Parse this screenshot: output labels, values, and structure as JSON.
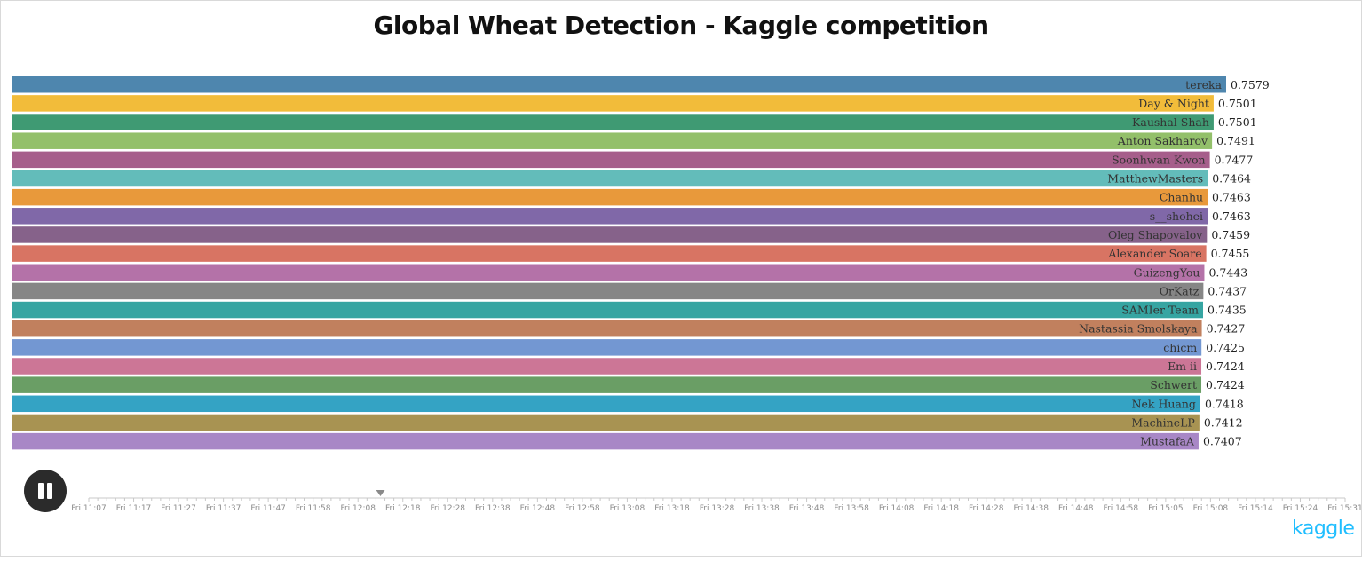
{
  "title": "Global Wheat Detection - Kaggle competition",
  "brand": "kaggle",
  "controls": {
    "play_state": "playing",
    "icon": "pause-icon"
  },
  "timeline": {
    "current_position_label": "Fri 12:13",
    "ticks": [
      "Fri 11:07",
      "Fri 11:17",
      "Fri 11:27",
      "Fri 11:37",
      "Fri 11:47",
      "Fri 11:58",
      "Fri 12:08",
      "Fri 12:18",
      "Fri 12:28",
      "Fri 12:38",
      "Fri 12:48",
      "Fri 12:58",
      "Fri 13:08",
      "Fri 13:18",
      "Fri 13:28",
      "Fri 13:38",
      "Fri 13:48",
      "Fri 13:58",
      "Fri 14:08",
      "Fri 14:18",
      "Fri 14:28",
      "Fri 14:38",
      "Fri 14:48",
      "Fri 14:58",
      "Fri 15:05",
      "Fri 15:08",
      "Fri 15:14",
      "Fri 15:24",
      "Fri 15:31"
    ]
  },
  "chart_data": {
    "type": "bar",
    "orientation": "horizontal",
    "title": "Global Wheat Detection - Kaggle competition",
    "xlabel": "",
    "ylabel": "",
    "xlim": [
      0,
      0.7579
    ],
    "categories": [
      "tereka",
      "Day & Night",
      "Kaushal Shah",
      "Anton Sakharov",
      "Soonhwan Kwon",
      "MatthewMasters",
      "Chanhu",
      "s__shohei",
      "Oleg Shapovalov",
      "Alexander Soare",
      "GuizengYou",
      "OrKatz",
      "SAMIer Team",
      "Nastassia Smolskaya",
      "chicm",
      "Em ii",
      "Schwert",
      "Nek Huang",
      "MachineLP",
      "MustafaA"
    ],
    "values": [
      0.7579,
      0.7501,
      0.7501,
      0.7491,
      0.7477,
      0.7464,
      0.7463,
      0.7463,
      0.7459,
      0.7455,
      0.7443,
      0.7437,
      0.7435,
      0.7427,
      0.7425,
      0.7424,
      0.7424,
      0.7418,
      0.7412,
      0.7407
    ],
    "colors": [
      "#4e86ae",
      "#f2bc3a",
      "#3f9a73",
      "#93c06a",
      "#a65e8b",
      "#63bcba",
      "#e8993b",
      "#8068a8",
      "#86628a",
      "#d87463",
      "#b472a8",
      "#868686",
      "#36a5a2",
      "#c1805e",
      "#7397d2",
      "#cc7696",
      "#6a9e65",
      "#34a3c4",
      "#a89352",
      "#a887c6"
    ],
    "value_labels": [
      "0.7579",
      "0.7501",
      "0.7501",
      "0.7491",
      "0.7477",
      "0.7464",
      "0.7463",
      "0.7463",
      "0.7459",
      "0.7455",
      "0.7443",
      "0.7437",
      "0.7435",
      "0.7427",
      "0.7425",
      "0.7424",
      "0.7424",
      "0.7418",
      "0.7412",
      "0.7407"
    ],
    "grid": false,
    "legend": "none"
  }
}
